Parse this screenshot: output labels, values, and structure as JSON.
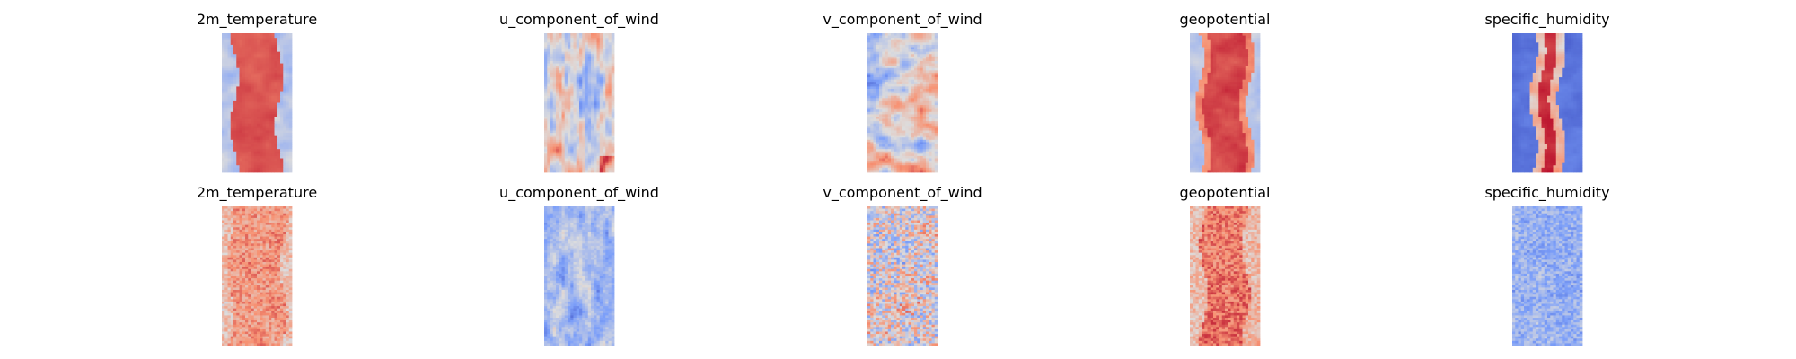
{
  "chart_data": [
    {
      "type": "heatmap",
      "row": 0,
      "title": "2m_temperature",
      "colormap": "coolwarm",
      "pattern": "temp"
    },
    {
      "type": "heatmap",
      "row": 0,
      "title": "u_component_of_wind",
      "colormap": "coolwarm",
      "pattern": "uwind"
    },
    {
      "type": "heatmap",
      "row": 0,
      "title": "v_component_of_wind",
      "colormap": "coolwarm",
      "pattern": "vwind"
    },
    {
      "type": "heatmap",
      "row": 0,
      "title": "geopotential",
      "colormap": "coolwarm",
      "pattern": "geo"
    },
    {
      "type": "heatmap",
      "row": 0,
      "title": "specific_humidity",
      "colormap": "coolwarm",
      "pattern": "humid"
    },
    {
      "type": "heatmap",
      "row": 1,
      "title": "2m_temperature",
      "colormap": "coolwarm",
      "pattern": "temp_noisy"
    },
    {
      "type": "heatmap",
      "row": 1,
      "title": "u_component_of_wind",
      "colormap": "coolwarm",
      "pattern": "uwind_noisy"
    },
    {
      "type": "heatmap",
      "row": 1,
      "title": "v_component_of_wind",
      "colormap": "coolwarm",
      "pattern": "vwind_noisy"
    },
    {
      "type": "heatmap",
      "row": 1,
      "title": "geopotential",
      "colormap": "coolwarm",
      "pattern": "geo_noisy"
    },
    {
      "type": "heatmap",
      "row": 1,
      "title": "specific_humidity",
      "colormap": "coolwarm",
      "pattern": "humid_noisy"
    }
  ]
}
